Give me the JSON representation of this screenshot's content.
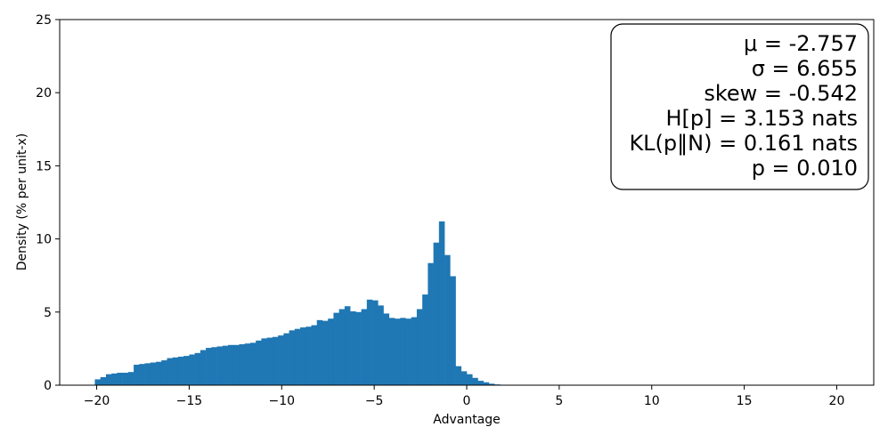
{
  "chart_data": {
    "type": "bar",
    "title": "",
    "xlabel": "Advantage",
    "ylabel": "Density (% per unit-x)",
    "xlim": [
      -22,
      22
    ],
    "ylim": [
      0,
      25
    ],
    "x_ticks": [
      -20,
      -15,
      -10,
      -5,
      0,
      5,
      10,
      15,
      20
    ],
    "x_tick_labels": [
      "−20",
      "−15",
      "−10",
      "−5",
      "0",
      "5",
      "10",
      "15",
      "20"
    ],
    "y_ticks": [
      0,
      5,
      10,
      15,
      20,
      25
    ],
    "y_tick_labels": [
      "0",
      "5",
      "10",
      "15",
      "20",
      "25"
    ],
    "bin_width": 0.3,
    "bin_start": -20.1,
    "values": [
      0.4,
      0.55,
      0.75,
      0.8,
      0.85,
      0.85,
      0.9,
      1.4,
      1.45,
      1.5,
      1.55,
      1.6,
      1.7,
      1.85,
      1.9,
      1.95,
      2.0,
      2.1,
      2.2,
      2.4,
      2.55,
      2.6,
      2.65,
      2.7,
      2.75,
      2.75,
      2.8,
      2.85,
      2.9,
      3.05,
      3.2,
      3.25,
      3.3,
      3.4,
      3.55,
      3.75,
      3.85,
      3.95,
      4.0,
      4.1,
      4.45,
      4.4,
      4.55,
      4.95,
      5.2,
      5.4,
      5.05,
      5.0,
      5.2,
      5.85,
      5.8,
      5.45,
      4.9,
      4.6,
      4.55,
      4.6,
      4.55,
      4.65,
      5.2,
      6.2,
      8.35,
      9.75,
      11.2,
      8.9,
      7.45,
      1.3,
      0.95,
      0.75,
      0.5,
      0.3,
      0.2,
      0.1,
      0.05,
      0.03,
      0.02,
      0.01,
      0.01,
      0.005,
      0.005
    ],
    "bar_color": "#1f77b4",
    "grid": false,
    "legend": "none",
    "stats_box": {
      "placement": "top-right",
      "lines": [
        "μ = -2.757",
        "σ = 6.655",
        "skew = -0.542",
        "H[p] = 3.153 nats",
        "KL(p‖N) = 0.161 nats",
        "p = 0.010"
      ]
    }
  }
}
